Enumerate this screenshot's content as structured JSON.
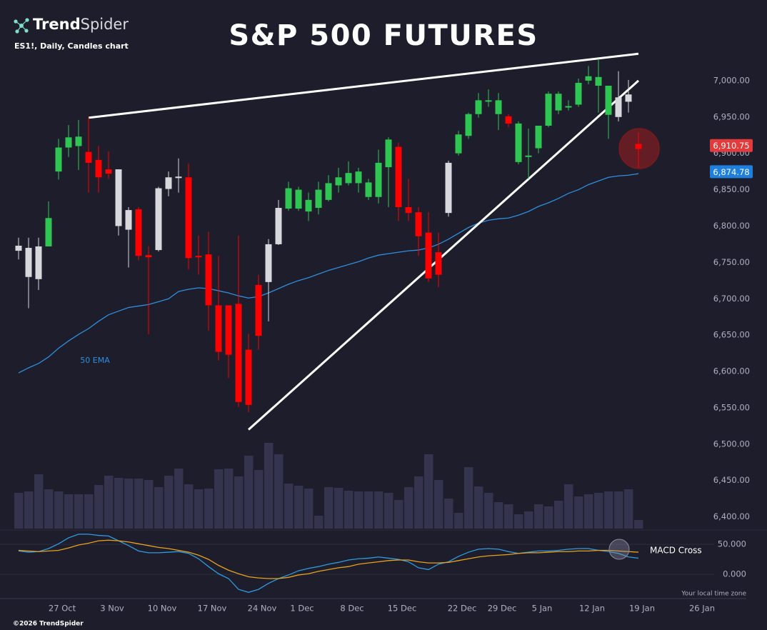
{
  "chart_data": {
    "type": "candlestick",
    "title": "S&P 500 FUTURES",
    "subtitle": "ES1!, Daily, Candles chart",
    "brand": {
      "bold": "Trend",
      "light": "Spider"
    },
    "copyright": "©2026 TrendSpider",
    "timezone_note": "Your local time zone",
    "categories": [
      null,
      null,
      null,
      null,
      "27 Oct",
      null,
      null,
      null,
      null,
      "3 Nov",
      null,
      null,
      null,
      null,
      "10 Nov",
      null,
      null,
      null,
      null,
      "17 Nov",
      null,
      null,
      null,
      null,
      "24 Nov",
      null,
      null,
      null,
      "1 Dec",
      null,
      null,
      null,
      null,
      "8 Dec",
      null,
      null,
      null,
      null,
      "15 Dec",
      null,
      null,
      null,
      null,
      null,
      "22 Dec",
      null,
      null,
      null,
      "29 Dec",
      null,
      null,
      null,
      "5 Jan",
      null,
      null,
      null,
      null,
      "12 Jan",
      null,
      null,
      null,
      null,
      "19 Jan",
      null,
      null,
      null,
      null,
      null,
      "26 Jan",
      null
    ],
    "open": [
      6766,
      6730,
      6727,
      6772,
      6875,
      6908,
      6910,
      6902,
      6891,
      6878,
      6800,
      6795,
      6823,
      6760,
      6767,
      6851,
      6866,
      6867,
      6759,
      6761,
      6691,
      6691,
      6693,
      6630,
      6719,
      6723,
      6775,
      6824,
      6824,
      6820,
      6825,
      6836,
      6856,
      6859,
      6859,
      6840,
      6840,
      6881,
      6909,
      6826,
      6819,
      6791,
      6764,
      6818,
      6900,
      6924,
      6954,
      6971,
      6954,
      6951,
      6888,
      6895,
      6907,
      6938,
      6959,
      6963,
      6967,
      7000,
      6993,
      6953,
      6950,
      6971,
      6913,
      null,
      null,
      null,
      null,
      null,
      null,
      null
    ],
    "high": [
      6784,
      6784,
      6784,
      6834,
      6920,
      6939,
      6946,
      6950,
      6910,
      6903,
      6878,
      6826,
      6826,
      6772,
      6854,
      6875,
      6893,
      6886,
      6787,
      6792,
      6759,
      6691,
      6787,
      6652,
      6733,
      6782,
      6836,
      6861,
      6854,
      6846,
      6861,
      6870,
      6880,
      6889,
      6880,
      6865,
      6905,
      6922,
      6915,
      6865,
      6826,
      6819,
      6791,
      6890,
      6931,
      6956,
      6983,
      6988,
      6983,
      6954,
      6944,
      6934,
      6938,
      6985,
      6985,
      6973,
      7003,
      7020,
      7030,
      6993,
      7013,
      7001,
      6929,
      null,
      null,
      null,
      null,
      null,
      null,
      null
    ],
    "low": [
      6754,
      6687,
      6712,
      6772,
      6864,
      6895,
      6877,
      6846,
      6846,
      6865,
      6787,
      6743,
      6753,
      6651,
      6765,
      6841,
      6846,
      6740,
      6733,
      6656,
      6615,
      6591,
      6551,
      6544,
      6630,
      6669,
      6774,
      6821,
      6821,
      6807,
      6816,
      6834,
      6846,
      6856,
      6846,
      6836,
      6831,
      6826,
      6807,
      6807,
      6759,
      6723,
      6716,
      6813,
      6897,
      6920,
      6949,
      6964,
      6932,
      6936,
      6885,
      6865,
      6900,
      6936,
      6954,
      6959,
      6964,
      6995,
      6956,
      6920,
      6944,
      6956,
      6880,
      null,
      null,
      null,
      null,
      null,
      null,
      null
    ],
    "close": [
      6773,
      6770,
      6772,
      6811,
      6908,
      6922,
      6923,
      6887,
      6867,
      6872,
      6878,
      6822,
      6759,
      6757,
      6852,
      6867,
      6868,
      6756,
      6757,
      6691,
      6627,
      6623,
      6558,
      6554,
      6649,
      6775,
      6825,
      6852,
      6850,
      6836,
      6850,
      6859,
      6867,
      6873,
      6875,
      6860,
      6887,
      6919,
      6826,
      6818,
      6786,
      6728,
      6733,
      6887,
      6926,
      6954,
      6973,
      6973,
      6973,
      6941,
      6941,
      6897,
      6938,
      6982,
      6982,
      6965,
      6997,
      7006,
      7005,
      6993,
      6977,
      6981,
      6906,
      null,
      null,
      null,
      null,
      null,
      null,
      null
    ],
    "candle_colors": [
      "#d8d8dc",
      "#d8d8dc",
      "#d8d8dc",
      "#2fc552",
      "#2fc552",
      "#2fc552",
      "#2fc552",
      "#ff0000",
      "#ff0000",
      "#ff0000",
      "#d8d8dc",
      "#d8d8dc",
      "#ff0000",
      "#ff0000",
      "#d8d8dc",
      "#d8d8dc",
      "#d8d8dc",
      "#ff0000",
      "#ff0000",
      "#ff0000",
      "#ff0000",
      "#ff0000",
      "#ff0000",
      "#ff0000",
      "#ff0000",
      "#d8d8dc",
      "#d8d8dc",
      "#2fc552",
      "#2fc552",
      "#2fc552",
      "#2fc552",
      "#2fc552",
      "#2fc552",
      "#2fc552",
      "#2fc552",
      "#2fc552",
      "#2fc552",
      "#2fc552",
      "#ff0000",
      "#ff0000",
      "#ff0000",
      "#ff0000",
      "#ff0000",
      "#d8d8dc",
      "#2fc552",
      "#2fc552",
      "#2fc552",
      "#2fc552",
      "#2fc552",
      "#ff0000",
      "#2fc552",
      "#2fc552",
      "#2fc552",
      "#2fc552",
      "#2fc552",
      "#2fc552",
      "#2fc552",
      "#2fc552",
      "#2fc552",
      "#2fc552",
      "#d8d8dc",
      "#d8d8dc",
      "#ff0000",
      null,
      null,
      null,
      null,
      null,
      null,
      null
    ],
    "volume": {
      "color": "#34344e",
      "values": [
        50,
        52,
        76,
        55,
        52,
        48,
        48,
        48,
        61,
        74,
        71,
        70,
        70,
        68,
        58,
        74,
        84,
        62,
        55,
        56,
        83,
        84,
        73,
        102,
        82,
        120,
        104,
        63,
        60,
        56,
        18,
        58,
        57,
        53,
        52,
        52,
        52,
        50,
        40,
        58,
        73,
        104,
        68,
        42,
        22,
        86,
        59,
        50,
        37,
        34,
        20,
        24,
        34,
        31,
        39,
        62,
        45,
        48,
        50,
        52,
        52,
        55,
        12,
        null,
        null,
        null,
        null,
        null,
        null,
        null
      ]
    },
    "ema": {
      "name": "50 EMA",
      "color": "#2f8fdc",
      "values": [
        6598,
        6605,
        6611,
        6620,
        6632,
        6642,
        6651,
        6659,
        6669,
        6678,
        6683,
        6688,
        6690,
        6692,
        6696,
        6700,
        6710,
        6713,
        6715,
        6714,
        6711,
        6708,
        6704,
        6701,
        6703,
        6708,
        6714,
        6720,
        6725,
        6729,
        6734,
        6739,
        6743,
        6747,
        6751,
        6756,
        6760,
        6762,
        6764,
        6766,
        6767,
        6770,
        6775,
        6782,
        6790,
        6798,
        6804,
        6808,
        6810,
        6811,
        6815,
        6820,
        6827,
        6832,
        6838,
        6845,
        6850,
        6857,
        6862,
        6867,
        6869,
        6870,
        6872,
        null,
        null,
        null,
        null,
        null,
        null,
        null
      ]
    },
    "price_labels": [
      {
        "value": 6910.75,
        "label": "6,910.75",
        "color": "#e23b3b"
      },
      {
        "value": 6874.78,
        "label": "6,874.78",
        "color": "#1f7fdc"
      }
    ],
    "trendlines": [
      {
        "from_index": 7,
        "from_value": 6949,
        "to_index": 62,
        "to_value": 7037,
        "color": "#ffffff"
      },
      {
        "from_index": 23,
        "from_value": 6520,
        "to_index": 62,
        "to_value": 7000,
        "color": "#ffffff"
      }
    ],
    "ylim": [
      6380,
      7050
    ],
    "yticks": [
      {
        "value": 6400,
        "label": "6,400.00"
      },
      {
        "value": 6450,
        "label": "6,450.00"
      },
      {
        "value": 6500,
        "label": "6,500.00"
      },
      {
        "value": 6550,
        "label": "6,550.00"
      },
      {
        "value": 6600,
        "label": "6,600.00"
      },
      {
        "value": 6650,
        "label": "6,650.00"
      },
      {
        "value": 6700,
        "label": "6,700.00"
      },
      {
        "value": 6750,
        "label": "6,750.00"
      },
      {
        "value": 6800,
        "label": "6,800.00"
      },
      {
        "value": 6850,
        "label": "6,850.00"
      },
      {
        "value": 6900,
        "label": "6,900.00"
      },
      {
        "value": 6950,
        "label": "6,950.00"
      },
      {
        "value": 7000,
        "label": "7,000.00"
      }
    ],
    "macd": {
      "annotation": "MACD Cross",
      "ylim": [
        -38,
        74
      ],
      "yticks": [
        {
          "value": 0,
          "label": "0.000"
        },
        {
          "value": 50,
          "label": "50.000"
        }
      ],
      "series": [
        {
          "color": "#2f9be0",
          "values": [
            39,
            37,
            38,
            43,
            51,
            61,
            67,
            67,
            65,
            64,
            56,
            48,
            39,
            36,
            36,
            37,
            38,
            35,
            26,
            13,
            1,
            -7,
            -25,
            -30,
            -25,
            -15,
            -7,
            -1,
            6,
            10,
            13,
            17,
            20,
            24,
            26,
            27,
            29,
            27,
            25,
            21,
            11,
            8,
            17,
            21,
            30,
            37,
            42,
            43,
            42,
            38,
            35,
            37,
            39,
            39,
            40,
            42,
            43,
            43,
            40,
            38,
            35,
            29,
            27,
            null,
            null,
            null,
            null,
            null,
            null,
            null
          ]
        },
        {
          "color": "#e8a21c",
          "values": [
            40,
            39,
            38,
            39,
            40,
            44,
            49,
            52,
            56,
            57,
            56,
            54,
            51,
            48,
            45,
            43,
            40,
            37,
            32,
            25,
            15,
            7,
            1,
            -4,
            -6,
            -7,
            -7,
            -5,
            -1,
            1,
            5,
            8,
            11,
            13,
            17,
            19,
            21,
            23,
            24,
            24,
            21,
            19,
            19,
            20,
            23,
            26,
            29,
            31,
            32,
            33,
            35,
            36,
            36,
            37,
            38,
            38,
            39,
            39,
            40,
            40,
            39,
            38,
            37,
            null,
            null,
            null,
            null,
            null,
            null,
            null
          ]
        }
      ]
    }
  }
}
